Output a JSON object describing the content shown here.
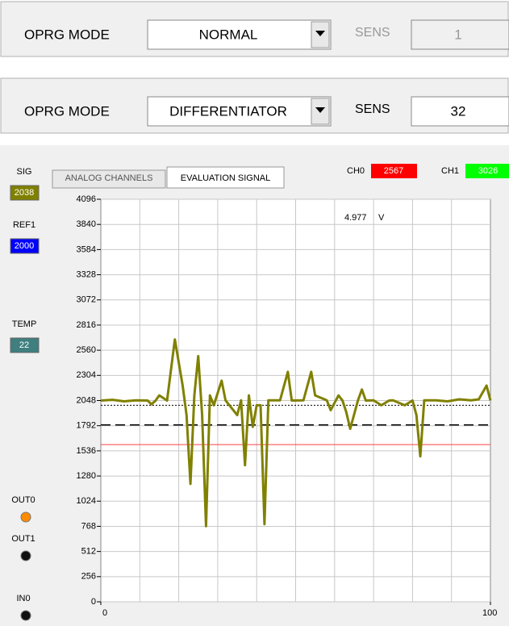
{
  "panels": [
    {
      "label": "OPRG MODE",
      "mode": "NORMAL",
      "sens_label": "SENS",
      "sens_value": 1,
      "sens_enabled": false
    },
    {
      "label": "OPRG MODE",
      "mode": "DIFFERENTIATOR",
      "sens_label": "SENS",
      "sens_value": 32,
      "sens_enabled": true
    }
  ],
  "indicators": [
    {
      "label": "SIG",
      "value": 2038,
      "color": "#808000"
    },
    {
      "label": "REF1",
      "value": 2000,
      "color": "#0000ff"
    },
    {
      "label": "TEMP",
      "value": 22,
      "color": "#3f7f7f"
    }
  ],
  "leds": [
    {
      "label": "OUT0",
      "color": "#ff8c00"
    },
    {
      "label": "OUT1",
      "color": "#111111"
    },
    {
      "label": "IN0",
      "color": "#111111"
    }
  ],
  "tabs": [
    "ANALOG CHANNELS",
    "EVALUATION SIGNAL"
  ],
  "active_tab": 1,
  "channels": [
    {
      "label": "CH0",
      "value": 2567,
      "color": "#ff0000"
    },
    {
      "label": "CH1",
      "value": 3026,
      "color": "#00ff00"
    }
  ],
  "chart_data": {
    "type": "line",
    "x": [
      0,
      3,
      6,
      9,
      12,
      13,
      14,
      15,
      17,
      19,
      21,
      22,
      23,
      24,
      25,
      26,
      27,
      28,
      29,
      31,
      32,
      34,
      35,
      36,
      37,
      38,
      39,
      40,
      41,
      42,
      43,
      46,
      48,
      49,
      52,
      54,
      55,
      58,
      59,
      61,
      62,
      63,
      64,
      66,
      67,
      68,
      70,
      72,
      74,
      75,
      78,
      80,
      81,
      82,
      83,
      86,
      89,
      92,
      95,
      97,
      99,
      100
    ],
    "series": [
      {
        "name": "SIG",
        "color": "#808000",
        "values": [
          2048,
          2055,
          2040,
          2050,
          2048,
          2010,
          2045,
          2100,
          2048,
          2670,
          2200,
          1900,
          1200,
          2100,
          2500,
          1900,
          770,
          2100,
          2000,
          2250,
          2050,
          1950,
          1900,
          2050,
          1390,
          2100,
          1780,
          2000,
          2000,
          790,
          2050,
          2050,
          2340,
          2048,
          2050,
          2340,
          2100,
          2050,
          1950,
          2100,
          2050,
          1930,
          1760,
          2050,
          2160,
          2048,
          2050,
          2000,
          2048,
          2050,
          2000,
          2048,
          1900,
          1480,
          2050,
          2050,
          2040,
          2060,
          2050,
          2060,
          2200,
          2048
        ]
      }
    ],
    "xlim": [
      0,
      100
    ],
    "xticks": [
      0,
      100
    ],
    "xgrid": [
      10,
      20,
      30,
      40,
      50,
      60,
      70,
      80,
      90
    ],
    "ylim": [
      0,
      4096
    ],
    "yticks": [
      0,
      256,
      512,
      768,
      1024,
      1280,
      1536,
      1792,
      2048,
      2304,
      2560,
      2816,
      3072,
      3328,
      3584,
      3840,
      4096
    ],
    "grid": true,
    "hlines": [
      {
        "value": 2000,
        "color": "#000000",
        "style": "dotted"
      },
      {
        "value": 1800,
        "color": "#000000",
        "style": "dashed"
      },
      {
        "value": 1600,
        "color": "#ff4040",
        "style": "solid"
      }
    ],
    "annotations": [
      "4.977",
      "V"
    ]
  }
}
